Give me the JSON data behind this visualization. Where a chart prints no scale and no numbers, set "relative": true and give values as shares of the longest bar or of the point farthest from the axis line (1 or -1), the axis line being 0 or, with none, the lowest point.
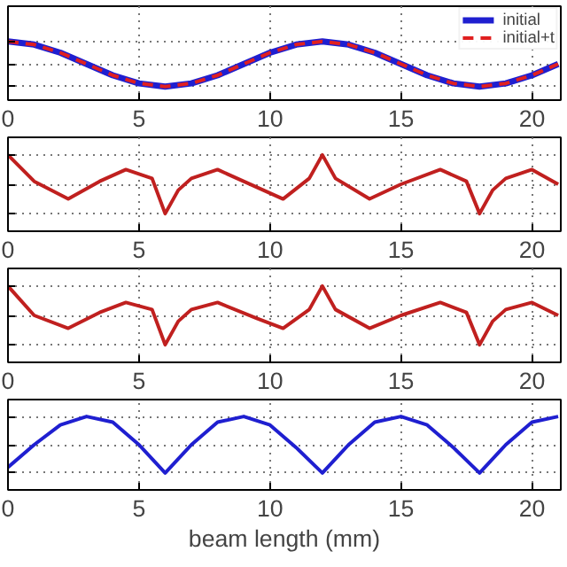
{
  "chart_data": [
    {
      "type": "line",
      "relative": true,
      "xlim": [
        0,
        21.1
      ],
      "xticks": [
        0,
        5,
        10,
        15,
        20
      ],
      "tick_labels": "x",
      "grid": true,
      "legend": "top right",
      "series": [
        {
          "name": "initial",
          "color": "#1f1fd0",
          "line_style": "solid",
          "x": [
            0,
            1,
            2,
            3,
            4,
            5,
            6,
            7,
            8,
            9,
            10,
            11,
            12,
            13,
            14,
            15,
            16,
            17,
            18,
            19,
            20,
            21
          ],
          "values": [
            1,
            0.93,
            0.75,
            0.5,
            0.25,
            0.07,
            0,
            0.07,
            0.25,
            0.5,
            0.75,
            0.93,
            1,
            0.93,
            0.75,
            0.5,
            0.25,
            0.07,
            0,
            0.07,
            0.25,
            0.5
          ]
        },
        {
          "name": "initial+t",
          "color": "#e02020",
          "line_style": "dashed",
          "x": [
            0,
            1,
            2,
            3,
            4,
            5,
            6,
            7,
            8,
            9,
            10,
            11,
            12,
            13,
            14,
            15,
            16,
            17,
            18,
            19,
            20,
            21
          ],
          "values": [
            1,
            0.93,
            0.75,
            0.5,
            0.25,
            0.07,
            0,
            0.07,
            0.25,
            0.5,
            0.75,
            0.93,
            1,
            0.93,
            0.75,
            0.5,
            0.25,
            0.07,
            0,
            0.07,
            0.25,
            0.5
          ]
        }
      ]
    },
    {
      "type": "line",
      "relative": true,
      "xlim": [
        0,
        21.1
      ],
      "xticks": [
        0,
        5,
        10,
        15,
        20
      ],
      "tick_labels": "x",
      "grid": true,
      "series": [
        {
          "color": "#c0201f",
          "x": [
            0,
            1,
            2.3,
            3.5,
            4.5,
            5.5,
            6,
            6.5,
            7,
            8,
            9.5,
            10.5,
            11.5,
            12,
            12.5,
            13.8,
            15,
            16.5,
            17.5,
            18,
            18.5,
            19,
            20,
            21
          ],
          "values": [
            1,
            0.55,
            0.25,
            0.55,
            0.75,
            0.6,
            0,
            0.4,
            0.6,
            0.75,
            0.45,
            0.25,
            0.6,
            1,
            0.6,
            0.25,
            0.5,
            0.75,
            0.55,
            0,
            0.4,
            0.6,
            0.75,
            0.5
          ]
        }
      ]
    },
    {
      "type": "line",
      "relative": true,
      "xlim": [
        0,
        21.1
      ],
      "xticks": [
        0,
        5,
        10,
        15,
        20
      ],
      "tick_labels": "x",
      "grid": true,
      "series": [
        {
          "color": "#c0201f",
          "x": [
            0,
            1,
            2.3,
            3.5,
            4.5,
            5.5,
            6,
            6.5,
            7,
            8,
            9.5,
            10.5,
            11.5,
            12,
            12.5,
            13.8,
            15,
            16.5,
            17.5,
            18,
            18.5,
            19,
            20,
            21
          ],
          "values": [
            1,
            0.5,
            0.28,
            0.55,
            0.72,
            0.6,
            0,
            0.4,
            0.6,
            0.72,
            0.45,
            0.28,
            0.6,
            1,
            0.6,
            0.28,
            0.5,
            0.72,
            0.55,
            0,
            0.4,
            0.6,
            0.72,
            0.5
          ]
        }
      ]
    },
    {
      "type": "line",
      "relative": true,
      "xlim": [
        0,
        21.1
      ],
      "xticks": [
        0,
        5,
        10,
        15,
        20
      ],
      "tick_labels": "x",
      "grid": true,
      "xlabel": "beam length (mm)",
      "series": [
        {
          "color": "#1f1fd0",
          "x": [
            0,
            1,
            2,
            3,
            4,
            5,
            6,
            7,
            8,
            9,
            10,
            11,
            12,
            13,
            14,
            15,
            16,
            17,
            18,
            19,
            20,
            21
          ],
          "values": [
            0.1,
            0.5,
            0.85,
            1,
            0.9,
            0.5,
            0,
            0.5,
            0.9,
            1,
            0.85,
            0.45,
            0,
            0.5,
            0.9,
            1,
            0.85,
            0.45,
            0,
            0.5,
            0.9,
            1
          ]
        }
      ]
    }
  ]
}
